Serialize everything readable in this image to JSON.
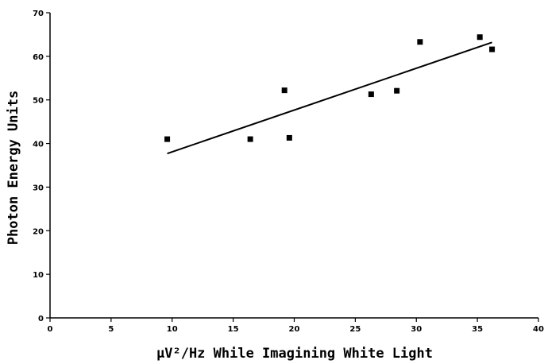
{
  "chart_data": {
    "type": "scatter",
    "xlabel": "µV²/Hz While Imagining White Light",
    "ylabel": "Photon Energy Units",
    "xlim": [
      0,
      40
    ],
    "ylim": [
      0,
      70
    ],
    "x_ticks": [
      0,
      5,
      10,
      15,
      20,
      25,
      30,
      35,
      40
    ],
    "y_ticks": [
      0,
      10,
      20,
      30,
      40,
      50,
      60,
      70
    ],
    "grid": false,
    "legend": "none",
    "series": [
      {
        "x": [
          9.6,
          16.4,
          19.2,
          19.6,
          26.3,
          28.4,
          30.3,
          35.2,
          36.2
        ],
        "y": [
          41.0,
          41.0,
          52.2,
          41.3,
          51.3,
          52.1,
          63.3,
          64.4,
          61.6
        ]
      }
    ],
    "trendline": {
      "x": [
        9.6,
        36.2
      ],
      "y": [
        37.7,
        63.2
      ]
    }
  }
}
